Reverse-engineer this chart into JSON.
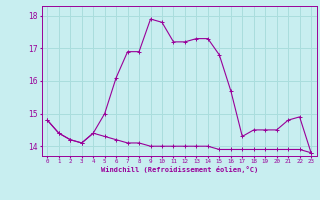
{
  "xlabel": "Windchill (Refroidissement éolien,°C)",
  "bg_color": "#c8eef0",
  "line_color": "#990099",
  "grid_color": "#aadddd",
  "x_values": [
    0,
    1,
    2,
    3,
    4,
    5,
    6,
    7,
    8,
    9,
    10,
    11,
    12,
    13,
    14,
    15,
    16,
    17,
    18,
    19,
    20,
    21,
    22,
    23
  ],
  "temp_line": [
    14.8,
    14.4,
    14.2,
    14.1,
    14.4,
    14.3,
    14.2,
    14.1,
    14.1,
    14.0,
    14.0,
    14.0,
    14.0,
    14.0,
    14.0,
    13.9,
    13.9,
    13.9,
    13.9,
    13.9,
    13.9,
    13.9,
    13.9,
    13.8
  ],
  "windchill_line": [
    14.8,
    14.4,
    14.2,
    14.1,
    14.4,
    15.0,
    16.1,
    16.9,
    16.9,
    17.9,
    17.8,
    17.2,
    17.2,
    17.3,
    17.3,
    16.8,
    15.7,
    14.3,
    14.5,
    14.5,
    14.5,
    14.8,
    14.9,
    13.8
  ],
  "ylim": [
    13.7,
    18.3
  ],
  "yticks": [
    14,
    15,
    16,
    17,
    18
  ],
  "xticks": [
    0,
    1,
    2,
    3,
    4,
    5,
    6,
    7,
    8,
    9,
    10,
    11,
    12,
    13,
    14,
    15,
    16,
    17,
    18,
    19,
    20,
    21,
    22,
    23
  ],
  "figsize": [
    3.2,
    2.0
  ],
  "dpi": 100
}
